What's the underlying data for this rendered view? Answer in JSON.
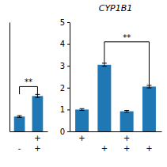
{
  "chart_data": [
    {
      "type": "bar",
      "categories": [
        [
          null,
          "-"
        ],
        [
          "+",
          "+"
        ]
      ],
      "values": [
        0.68,
        1.62
      ],
      "errors": [
        0.04,
        0.07
      ],
      "ylim": [
        0,
        5
      ],
      "tick_labels": "x",
      "annotations": [
        {
          "text": "**",
          "x1": 0,
          "x2": 1,
          "y": 2.05,
          "y_bottom": [
            1.7,
            1.7
          ]
        }
      ]
    },
    {
      "type": "bar",
      "title": "CYP1B1",
      "categories": [
        [
          "+",
          null
        ],
        [
          null,
          "+"
        ],
        [
          "+",
          "+"
        ],
        [
          null,
          "+"
        ]
      ],
      "values": [
        1.0,
        3.05,
        0.92,
        2.05
      ],
      "errors": [
        0.04,
        0.07,
        0.04,
        0.06
      ],
      "ylim": [
        0,
        5
      ],
      "yticks": [
        0,
        1,
        2,
        3,
        4,
        5
      ],
      "annotations": [
        {
          "text": "**",
          "x1": 1,
          "x2": 3,
          "y": 4.1,
          "y_bottom": [
            3.13,
            2.12
          ]
        }
      ]
    }
  ]
}
